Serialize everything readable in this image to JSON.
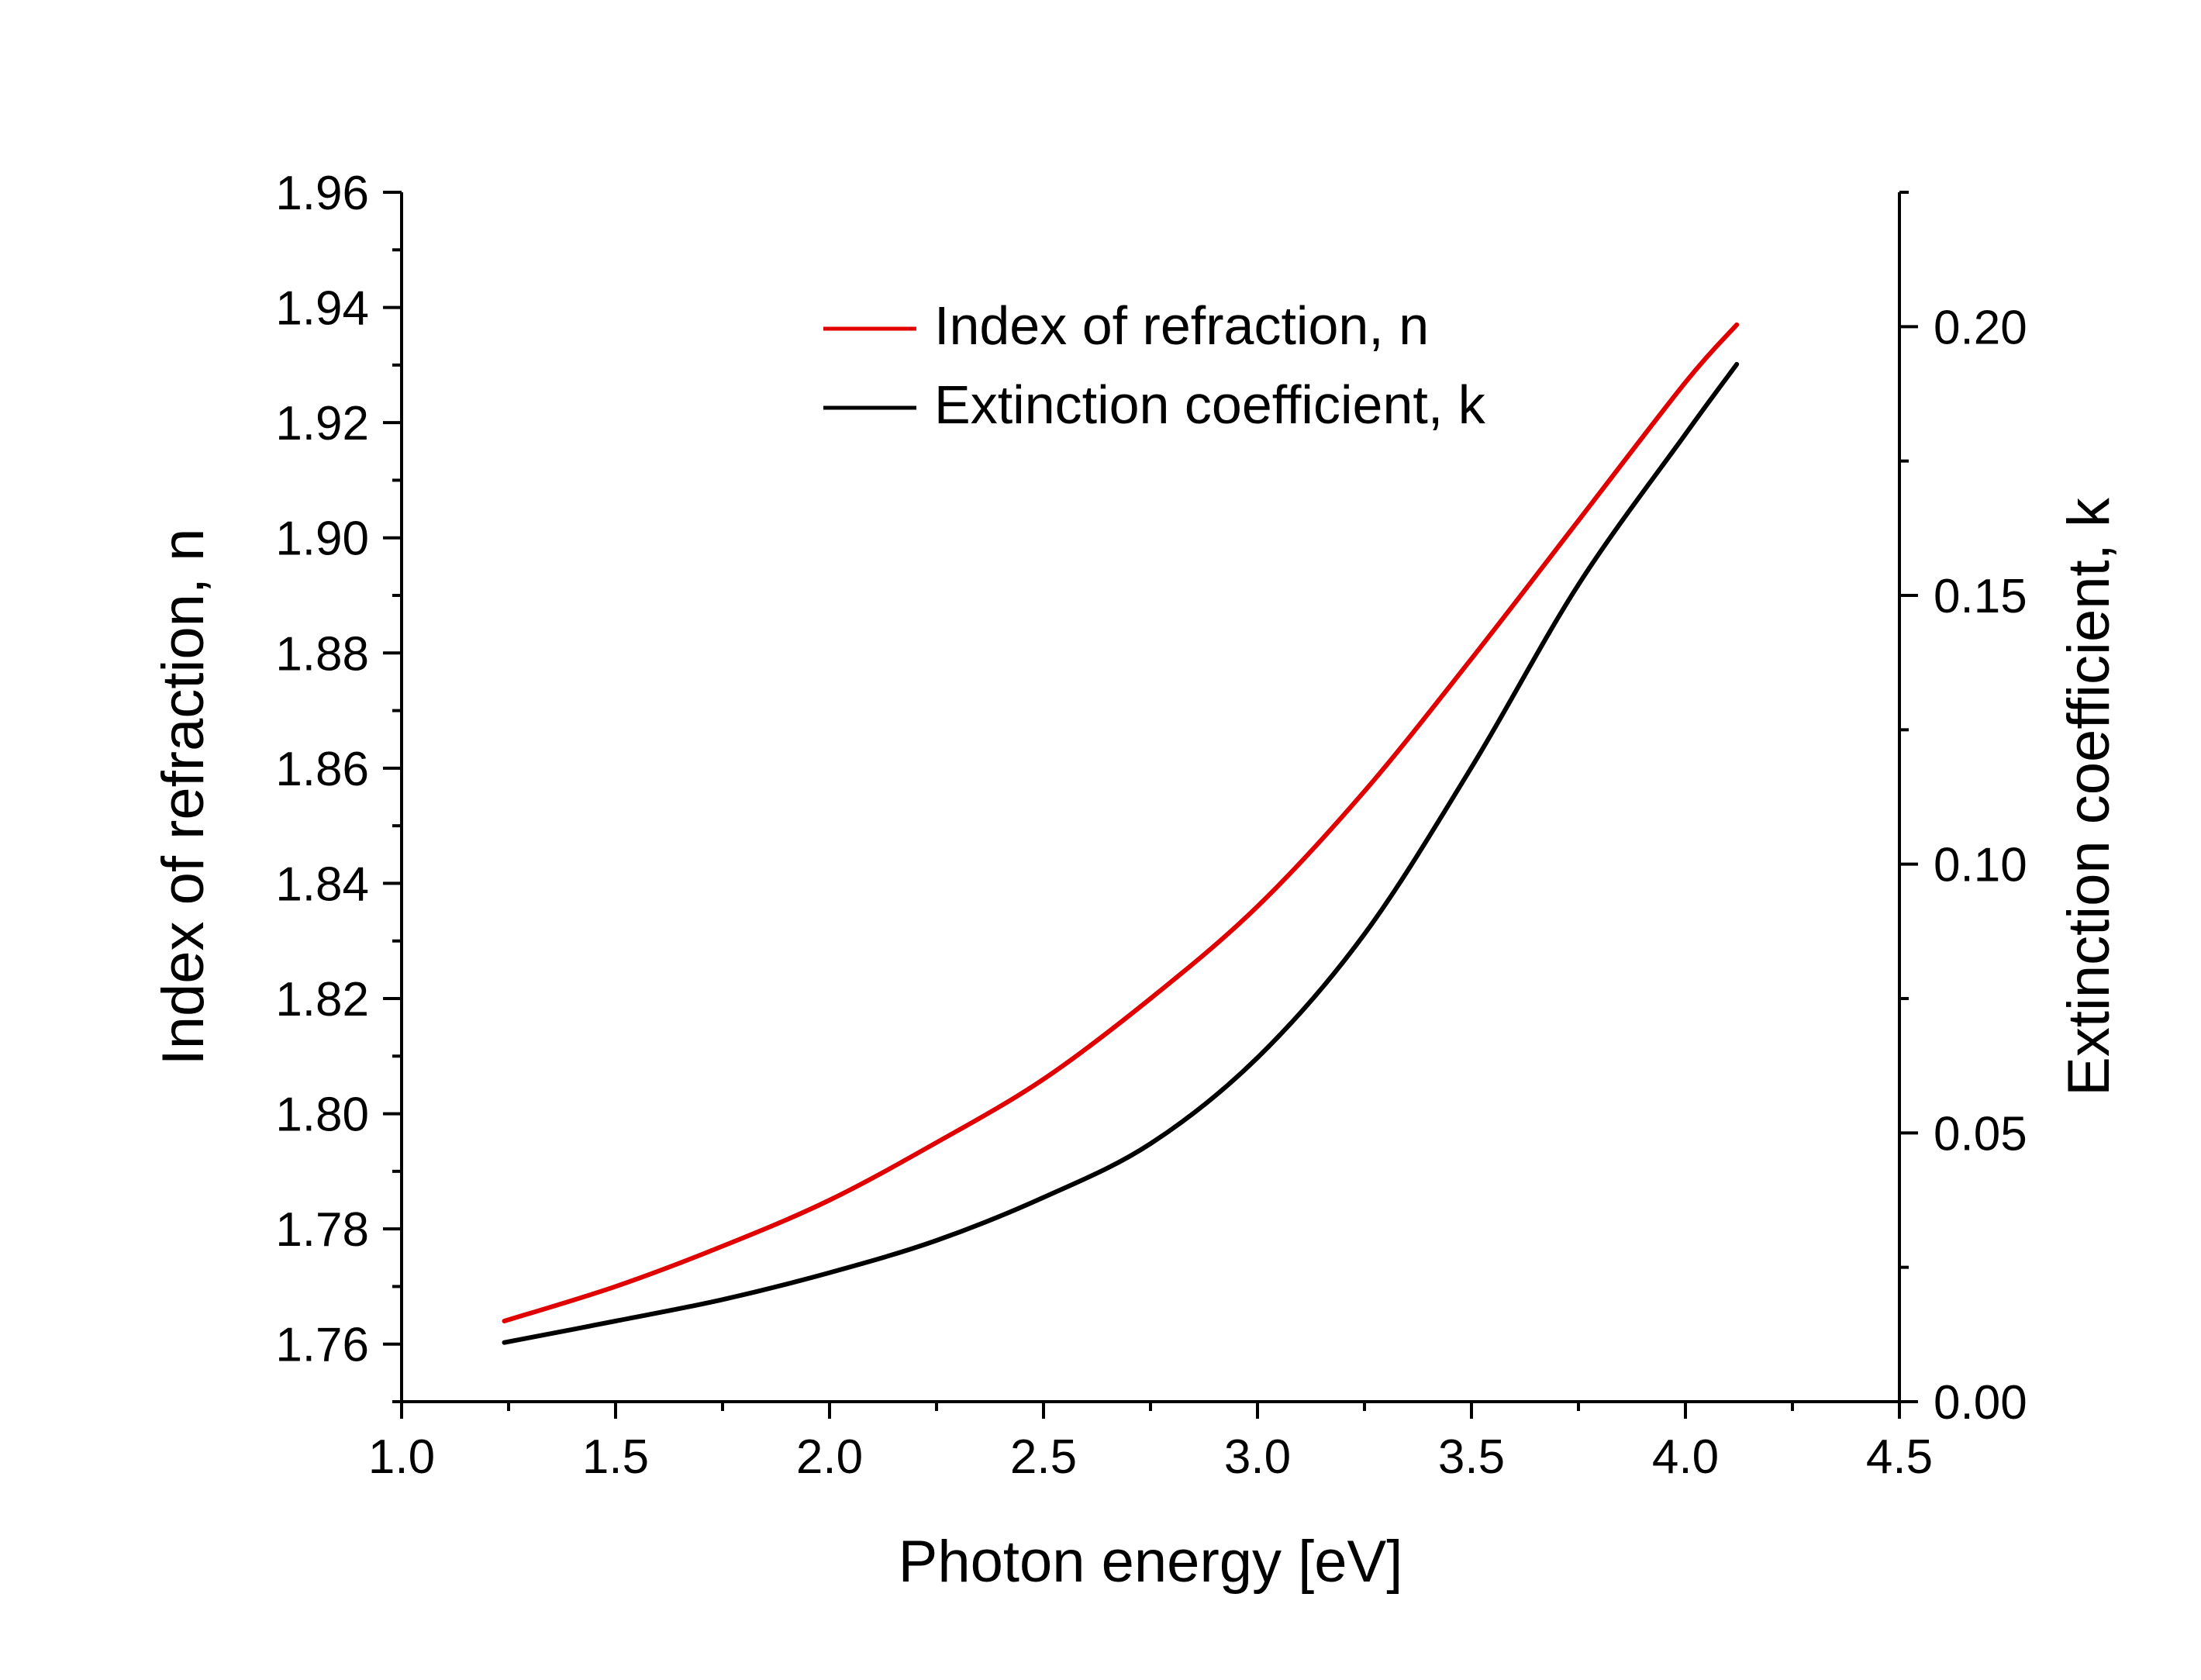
{
  "chart_data": {
    "type": "line",
    "title": "",
    "xlabel": "Photon energy [eV]",
    "ylabel": "Index of refraction, n",
    "y2label": "Extinction coefficient, k",
    "xlim": [
      1.0,
      4.5
    ],
    "ylim": [
      1.75,
      1.96
    ],
    "y2lim": [
      0.0,
      0.225
    ],
    "xticks": [
      "1.0",
      "1.5",
      "2.0",
      "2.5",
      "3.0",
      "3.5",
      "4.0",
      "4.5"
    ],
    "yticks": [
      "1.76",
      "1.78",
      "1.80",
      "1.82",
      "1.84",
      "1.86",
      "1.88",
      "1.90",
      "1.92",
      "1.94",
      "1.96"
    ],
    "y2ticks": [
      "0.00",
      "0.05",
      "0.10",
      "0.15",
      "0.20"
    ],
    "grid": false,
    "legend_position": "top-center",
    "x": [
      1.24,
      1.5,
      1.75,
      2.0,
      2.25,
      2.5,
      2.75,
      3.0,
      3.25,
      3.5,
      3.75,
      4.0,
      4.12
    ],
    "series": [
      {
        "name": "Index of refraction, n",
        "axis": "left",
        "color": "#e00000",
        "values": [
          1.764,
          1.77,
          1.777,
          1.785,
          1.795,
          1.806,
          1.82,
          1.836,
          1.856,
          1.879,
          1.903,
          1.927,
          1.937
        ]
      },
      {
        "name": "Extinction coefficient, k",
        "axis": "right",
        "color": "#000000",
        "values": [
          0.011,
          0.015,
          0.019,
          0.024,
          0.03,
          0.038,
          0.048,
          0.064,
          0.087,
          0.118,
          0.152,
          0.18,
          0.193
        ]
      }
    ]
  }
}
